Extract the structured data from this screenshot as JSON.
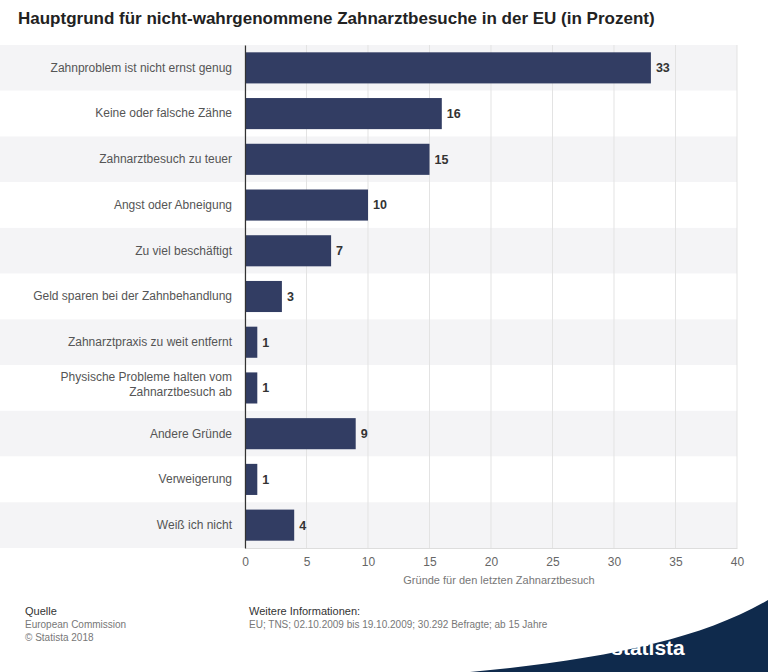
{
  "chart_data": {
    "type": "bar",
    "orientation": "horizontal",
    "title": "Hauptgrund für nicht-wahrgenommene Zahnarztbesuche in der EU (in Prozent)",
    "x_label": "Gründe für den letzten Zahnarztbesuch",
    "categories": [
      "Zahnproblem ist nicht ernst genug",
      "Keine oder falsche Zähne",
      "Zahnarztbesuch zu teuer",
      "Angst oder Abneigung",
      "Zu viel beschäftigt",
      "Geld sparen bei der Zahnbehandlung",
      "Zahnarztpraxis zu weit entfernt",
      "Physische Probleme halten vom Zahnarztbesuch ab",
      "Andere Gründe",
      "Verweigerung",
      "Weiß ich nicht"
    ],
    "values": [
      33,
      16,
      15,
      10,
      7,
      3,
      1,
      1,
      9,
      1,
      4
    ],
    "color": "#323d63",
    "xlim": [
      0,
      40
    ],
    "xticks": [
      0,
      5,
      10,
      15,
      20,
      25,
      30,
      35,
      40
    ],
    "grid": true,
    "data_labels": true,
    "annotations": [
      "Quelle",
      "European Commission",
      "© Statista 2018",
      "Weitere Informationen:",
      "EU; TNS; 02.10.2009 bis 19.10.2009; 30.292 Befragte; ab 15 Jahre",
      "statista"
    ]
  }
}
